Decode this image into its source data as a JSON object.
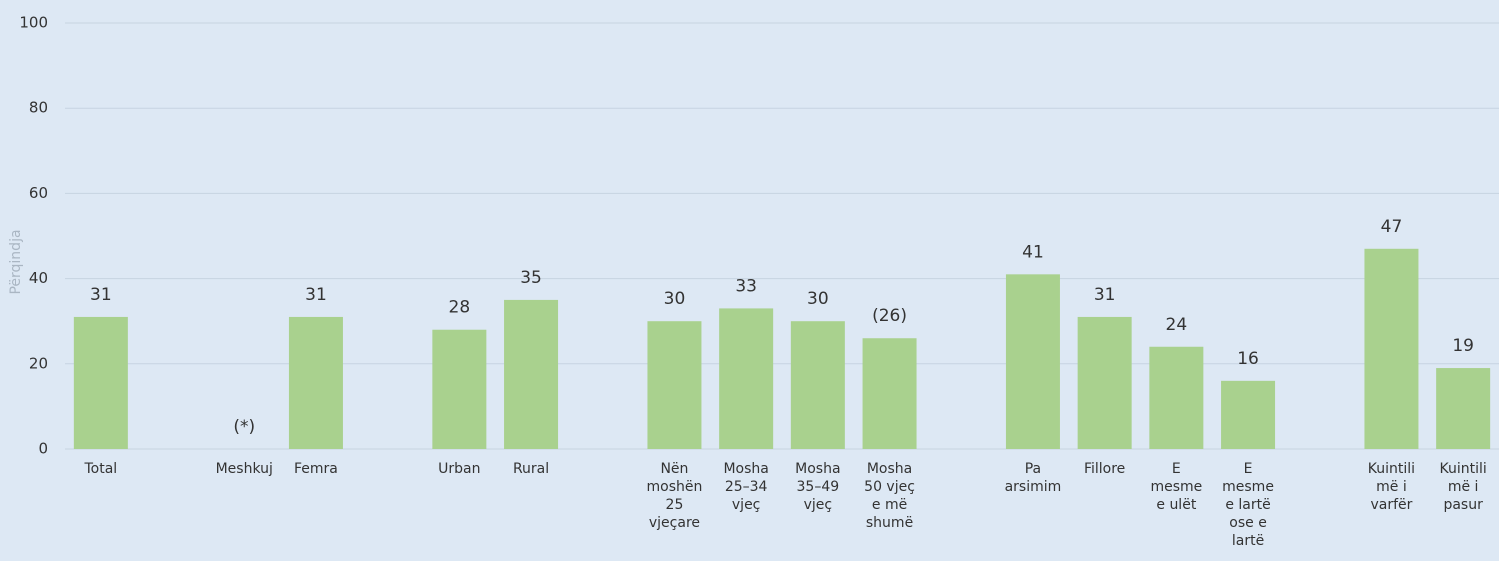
{
  "chart_data": {
    "type": "bar",
    "y_label": "Përqindja",
    "categories": [
      "Total",
      null,
      "Meshkuj",
      "Femra",
      null,
      "Urban",
      "Rural",
      null,
      "Nën\nmoshën\n25\nvjeçare",
      "Mosha\n25–34\nvjeç",
      "Mosha\n35–49\nvjeç",
      "Mosha\n50 vjeç\ne më\nshumë",
      null,
      "Pa\narsimim",
      "Fillore",
      "E\nmesme\ne ulët",
      "E\nmesme\ne lartë\nose e\nlartë",
      null,
      "Kuintili\nmë i\nvarfër",
      "Kuintili\nmë i\npasur"
    ],
    "values": [
      31,
      null,
      null,
      31,
      null,
      28,
      35,
      null,
      30,
      33,
      30,
      26,
      null,
      41,
      31,
      24,
      16,
      null,
      47,
      19
    ],
    "value_labels": [
      "31",
      null,
      "(*)",
      "31",
      null,
      "28",
      "35",
      null,
      "30",
      "33",
      "30",
      "(26)",
      null,
      "41",
      "31",
      "24",
      "16",
      null,
      "47",
      "19"
    ],
    "color": "#a9d18e",
    "ylim": [
      0,
      100
    ],
    "yticks": [
      0,
      20,
      40,
      60,
      80,
      100
    ],
    "grid": true
  }
}
